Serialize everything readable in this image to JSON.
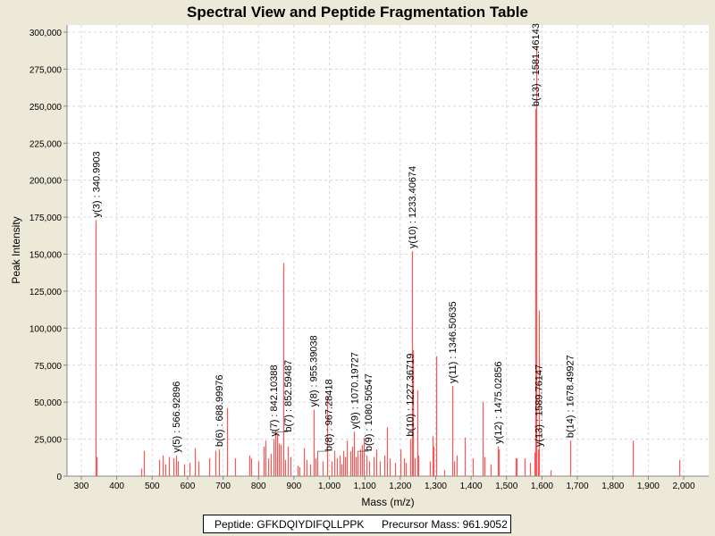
{
  "chart_data": {
    "type": "bar",
    "title": "Spectral View and Peptide Fragmentation Table",
    "xlabel": "Mass (m/z)",
    "ylabel": "Peak Intensity",
    "xlim": [
      265,
      2070
    ],
    "ylim": [
      0,
      305000
    ],
    "x_ticks": [
      300,
      400,
      500,
      600,
      700,
      800,
      900,
      1000,
      1100,
      1200,
      1300,
      1400,
      1500,
      1600,
      1700,
      1800,
      1900,
      2000
    ],
    "x_tick_labels": [
      "300",
      "400",
      "500",
      "600",
      "700",
      "800",
      "900",
      "1,000",
      "1,100",
      "1,200",
      "1,300",
      "1,400",
      "1,500",
      "1,600",
      "1,700",
      "1,800",
      "1,900",
      "2,000"
    ],
    "y_ticks": [
      0,
      25000,
      50000,
      75000,
      100000,
      125000,
      150000,
      175000,
      200000,
      225000,
      250000,
      275000,
      300000
    ],
    "y_tick_labels": [
      "0",
      "25,000",
      "50,000",
      "75,000",
      "100,000",
      "125,000",
      "150,000",
      "175,000",
      "200,000",
      "225,000",
      "250,000",
      "275,000",
      "300,000"
    ],
    "grid": true,
    "peak_color": "#ff5555",
    "peaks": [
      [
        341,
        173000
      ],
      [
        343,
        13000
      ],
      [
        469,
        5000
      ],
      [
        477,
        17000
      ],
      [
        519,
        11000
      ],
      [
        530,
        14000
      ],
      [
        537,
        8000
      ],
      [
        548,
        13000
      ],
      [
        560,
        12000
      ],
      [
        567,
        14000
      ],
      [
        572,
        10000
      ],
      [
        590,
        8000
      ],
      [
        605,
        9000
      ],
      [
        621,
        19000
      ],
      [
        630,
        10000
      ],
      [
        660,
        12000
      ],
      [
        678,
        17000
      ],
      [
        689,
        18000
      ],
      [
        711,
        46000
      ],
      [
        735,
        12000
      ],
      [
        775,
        14000
      ],
      [
        780,
        12000
      ],
      [
        800,
        10000
      ],
      [
        815,
        20000
      ],
      [
        820,
        24000
      ],
      [
        828,
        12000
      ],
      [
        835,
        15000
      ],
      [
        842,
        25000
      ],
      [
        848,
        31000
      ],
      [
        852,
        28000
      ],
      [
        858,
        22000
      ],
      [
        862,
        21000
      ],
      [
        870,
        144000
      ],
      [
        876,
        11000
      ],
      [
        882,
        20000
      ],
      [
        890,
        13000
      ],
      [
        910,
        7000
      ],
      [
        915,
        6000
      ],
      [
        928,
        19000
      ],
      [
        935,
        11000
      ],
      [
        945,
        8000
      ],
      [
        955,
        45000
      ],
      [
        962,
        12000
      ],
      [
        967,
        15000
      ],
      [
        980,
        10000
      ],
      [
        993,
        54000
      ],
      [
        1005,
        10000
      ],
      [
        1015,
        17000
      ],
      [
        1022,
        12000
      ],
      [
        1028,
        14000
      ],
      [
        1035,
        8000
      ],
      [
        1040,
        17000
      ],
      [
        1045,
        13000
      ],
      [
        1050,
        24000
      ],
      [
        1058,
        17000
      ],
      [
        1065,
        20000
      ],
      [
        1070,
        30000
      ],
      [
        1075,
        13000
      ],
      [
        1080,
        15000
      ],
      [
        1088,
        18000
      ],
      [
        1093,
        21000
      ],
      [
        1098,
        26000
      ],
      [
        1105,
        14000
      ],
      [
        1112,
        10000
      ],
      [
        1125,
        13000
      ],
      [
        1133,
        18000
      ],
      [
        1142,
        10000
      ],
      [
        1155,
        14000
      ],
      [
        1162,
        33000
      ],
      [
        1170,
        12000
      ],
      [
        1185,
        9000
      ],
      [
        1200,
        18000
      ],
      [
        1210,
        12000
      ],
      [
        1215,
        9000
      ],
      [
        1227,
        25000
      ],
      [
        1233.4,
        152000
      ],
      [
        1236,
        85000
      ],
      [
        1242,
        12000
      ],
      [
        1248,
        58000
      ],
      [
        1252,
        14000
      ],
      [
        1283,
        10000
      ],
      [
        1290,
        27000
      ],
      [
        1295,
        20000
      ],
      [
        1301,
        81000
      ],
      [
        1325,
        4000
      ],
      [
        1346.5,
        61000
      ],
      [
        1352,
        10000
      ],
      [
        1360,
        14000
      ],
      [
        1382,
        26000
      ],
      [
        1405,
        12000
      ],
      [
        1432,
        50000
      ],
      [
        1437,
        13000
      ],
      [
        1455,
        8000
      ],
      [
        1475,
        20000
      ],
      [
        1478,
        18000
      ],
      [
        1525,
        12000
      ],
      [
        1528,
        12000
      ],
      [
        1550,
        12000
      ],
      [
        1565,
        9000
      ],
      [
        1578,
        16000
      ],
      [
        1581.5,
        248000
      ],
      [
        1583,
        290000
      ],
      [
        1589.8,
        18000
      ],
      [
        1592,
        112000
      ],
      [
        1625,
        4000
      ],
      [
        1678.5,
        24000
      ],
      [
        1856,
        24000
      ],
      [
        1987,
        11000
      ]
    ],
    "annotations": [
      {
        "mz": 341,
        "intensity": 173000,
        "label": "y(3) : 340.9903"
      },
      {
        "mz": 567,
        "intensity": 14000,
        "label": "y(5) : 566.92896"
      },
      {
        "mz": 689,
        "intensity": 18000,
        "label": "b(6) : 688.99976"
      },
      {
        "mz": 842,
        "intensity": 25000,
        "label": "y(7) : 842.10388"
      },
      {
        "mz": 852,
        "intensity": 28000,
        "label": "b(7) : 852.59487"
      },
      {
        "mz": 955,
        "intensity": 45000,
        "label": "y(8) : 955.39038"
      },
      {
        "mz": 967,
        "intensity": 15000,
        "label": "b(8) : 967.28418"
      },
      {
        "mz": 1070,
        "intensity": 30000,
        "label": "y(9) : 1070.19727"
      },
      {
        "mz": 1080,
        "intensity": 15000,
        "label": "b(9) : 1080.50547"
      },
      {
        "mz": 1227,
        "intensity": 25000,
        "label": "b(10) : 1227.36719"
      },
      {
        "mz": 1233.4,
        "intensity": 152000,
        "label": "y(10) : 1233.40674"
      },
      {
        "mz": 1346.5,
        "intensity": 61000,
        "label": "y(11) : 1346.50635"
      },
      {
        "mz": 1475,
        "intensity": 20000,
        "label": "y(12) : 1475.02856"
      },
      {
        "mz": 1581.5,
        "intensity": 248000,
        "label": "b(13) : 1581.46143"
      },
      {
        "mz": 1589.8,
        "intensity": 18000,
        "label": "y(13) : 1589.76147"
      },
      {
        "mz": 1678.5,
        "intensity": 24000,
        "label": "b(14) : 1678.49927"
      }
    ]
  },
  "legend": {
    "peptide": "Peptide: GFKDQIYDIFQLLPPK",
    "precursor": "Precursor Mass: 961.9052"
  }
}
